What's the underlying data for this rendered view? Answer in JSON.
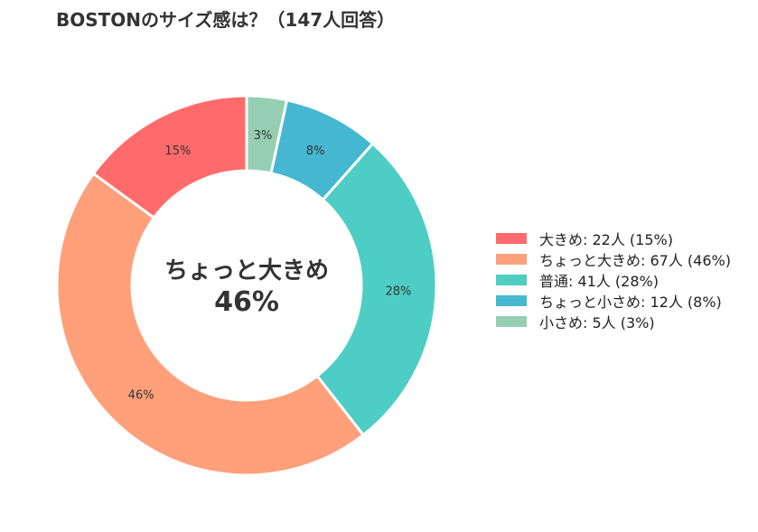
{
  "title": "BOSTONのサイズ感は？（147人回答）",
  "chart_data": {
    "type": "pie",
    "variant": "donut",
    "title": "BOSTONのサイズ感は？（147人回答）",
    "total": 147,
    "center_label": "ちょっと大きめ",
    "center_value": "46%",
    "legend_position": "right",
    "slices": [
      {
        "label": "大きめ",
        "count": 22,
        "percent": 15,
        "value_label": "15%",
        "legend": "大きめ:  22人 (15%)",
        "color": "#FF6B6B"
      },
      {
        "label": "ちょっと大きめ",
        "count": 67,
        "percent": 46,
        "value_label": "46%",
        "legend": "ちょっと大きめ:  67人 (46%)",
        "color": "#FFA07A"
      },
      {
        "label": "普通",
        "count": 41,
        "percent": 28,
        "value_label": "28%",
        "legend": "普通:  41人 (28%)",
        "color": "#4ECDC4"
      },
      {
        "label": "ちょっと小さめ",
        "count": 12,
        "percent": 8,
        "value_label": "8%",
        "legend": "ちょっと小さめ:  12人 (8%)",
        "color": "#45B7D1"
      },
      {
        "label": "小さめ",
        "count": 5,
        "percent": 3,
        "value_label": "3%",
        "legend": "小さめ:  5人 (3%)",
        "color": "#96CEB4"
      }
    ]
  }
}
